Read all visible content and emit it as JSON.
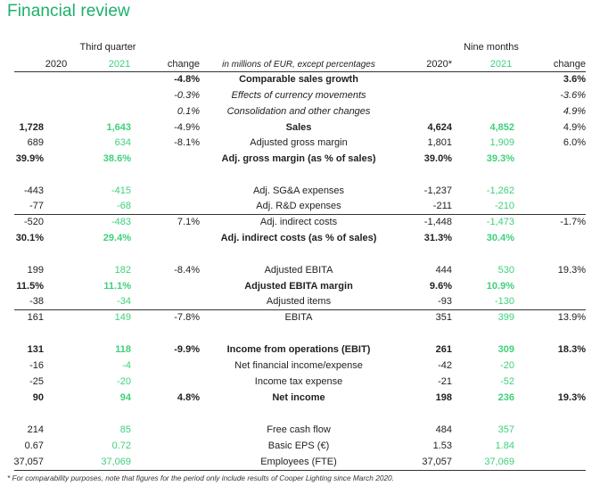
{
  "title": "Financial review",
  "header": {
    "q3_group": "Third quarter",
    "nm_group": "Nine months",
    "q3_2020": "2020",
    "q3_2021": "2021",
    "q3_change": "change",
    "description": "in millions of EUR, except percentages",
    "nm_2020": "2020*",
    "nm_2021": "2021",
    "nm_change": "change"
  },
  "rows": [
    {
      "a": "",
      "b": "",
      "c": "-4.8%",
      "label": "Comparable sales growth",
      "d": "",
      "e": "",
      "f": "3.6%"
    },
    {
      "a": "",
      "b": "",
      "c": "-0.3%",
      "label": "Effects of currency movements",
      "d": "",
      "e": "",
      "f": "-3.6%"
    },
    {
      "a": "",
      "b": "",
      "c": "0.1%",
      "label": "Consolidation and other changes",
      "d": "",
      "e": "",
      "f": "4.9%"
    },
    {
      "a": "1,728",
      "b": "1,643",
      "c": "-4.9%",
      "label": "Sales",
      "d": "4,624",
      "e": "4,852",
      "f": "4.9%"
    },
    {
      "a": "689",
      "b": "634",
      "c": "-8.1%",
      "label": "Adjusted gross margin",
      "d": "1,801",
      "e": "1,909",
      "f": "6.0%"
    },
    {
      "a": "39.9%",
      "b": "38.6%",
      "c": "",
      "label": "Adj. gross margin (as % of sales)",
      "d": "39.0%",
      "e": "39.3%",
      "f": ""
    },
    {
      "a": "-443",
      "b": "-415",
      "c": "",
      "label": "Adj. SG&A expenses",
      "d": "-1,237",
      "e": "-1,262",
      "f": ""
    },
    {
      "a": "-77",
      "b": "-68",
      "c": "",
      "label": "Adj. R&D expenses",
      "d": "-211",
      "e": "-210",
      "f": ""
    },
    {
      "a": "-520",
      "b": "-483",
      "c": "7.1%",
      "label": "Adj. indirect costs",
      "d": "-1,448",
      "e": "-1,473",
      "f": "-1.7%"
    },
    {
      "a": "30.1%",
      "b": "29.4%",
      "c": "",
      "label": "Adj. indirect costs (as % of sales)",
      "d": "31.3%",
      "e": "30.4%",
      "f": ""
    },
    {
      "a": "199",
      "b": "182",
      "c": "-8.4%",
      "label": "Adjusted EBITA",
      "d": "444",
      "e": "530",
      "f": "19.3%"
    },
    {
      "a": "11.5%",
      "b": "11.1%",
      "c": "",
      "label": "Adjusted EBITA margin",
      "d": "9.6%",
      "e": "10.9%",
      "f": ""
    },
    {
      "a": "-38",
      "b": "-34",
      "c": "",
      "label": "Adjusted items",
      "d": "-93",
      "e": "-130",
      "f": ""
    },
    {
      "a": "161",
      "b": "149",
      "c": "-7.8%",
      "label": "EBITA",
      "d": "351",
      "e": "399",
      "f": "13.9%"
    },
    {
      "a": "131",
      "b": "118",
      "c": "-9.9%",
      "label": "Income from operations (EBIT)",
      "d": "261",
      "e": "309",
      "f": "18.3%"
    },
    {
      "a": "-16",
      "b": "-4",
      "c": "",
      "label": "Net financial income/expense",
      "d": "-42",
      "e": "-20",
      "f": ""
    },
    {
      "a": "-25",
      "b": "-20",
      "c": "",
      "label": "Income tax expense",
      "d": "-21",
      "e": "-52",
      "f": ""
    },
    {
      "a": "90",
      "b": "94",
      "c": "4.8%",
      "label": "Net income",
      "d": "198",
      "e": "236",
      "f": "19.3%"
    },
    {
      "a": "214",
      "b": "85",
      "c": "",
      "label": "Free cash flow",
      "d": "484",
      "e": "357",
      "f": ""
    },
    {
      "a": "0.67",
      "b": "0.72",
      "c": "",
      "label": "Basic EPS (€)",
      "d": "1.53",
      "e": "1.84",
      "f": ""
    },
    {
      "a": "37,057",
      "b": "37,069",
      "c": "",
      "label": "Employees (FTE)",
      "d": "37,057",
      "e": "37,069",
      "f": ""
    }
  ],
  "footnote": "* For comparability purposes, note that figures for the period only include results of Cooper Lighting since March 2020.",
  "colors": {
    "accent": "#1db06a",
    "green_values": "#3fd07a",
    "text": "#222222"
  }
}
